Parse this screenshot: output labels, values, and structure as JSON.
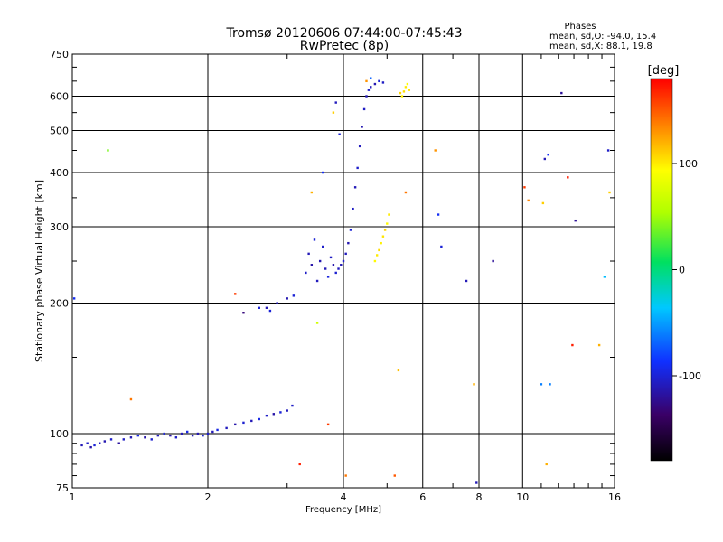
{
  "chart_data": {
    "type": "scatter",
    "title": "Tromsø 20120606 07:44:00-07:45:43",
    "subtitle": "RwPretec (8p)",
    "stats": {
      "header": "Phases",
      "line1": "mean, sd,O: -94.0, 15.4",
      "line2": "mean, sd,X:  88.1, 19.8"
    },
    "xlabel": "Frequency [MHz]",
    "ylabel": "Stationary phase Virtual Height [km]",
    "x_scale": "log",
    "y_scale": "log",
    "xlim": [
      1,
      16
    ],
    "ylim": [
      75,
      750
    ],
    "x_ticks": [
      1,
      2,
      4,
      6,
      8,
      10,
      16
    ],
    "y_ticks": [
      75,
      100,
      200,
      300,
      400,
      500,
      600,
      750
    ],
    "grid": true,
    "colorbar": {
      "label": "[deg]",
      "range": [
        -180,
        180
      ],
      "ticks": [
        100,
        0,
        -100
      ]
    },
    "series": [
      {
        "points": [
          [
            1.05,
            94,
            -110
          ],
          [
            1.08,
            95,
            -105
          ],
          [
            1.1,
            93,
            -115
          ],
          [
            1.12,
            94,
            -100
          ],
          [
            1.15,
            95,
            -108
          ],
          [
            1.18,
            96,
            -112
          ],
          [
            1.22,
            97,
            -104
          ],
          [
            1.27,
            95,
            -118
          ],
          [
            1.3,
            97,
            -106
          ],
          [
            1.35,
            98,
            -110
          ],
          [
            1.4,
            99,
            -95
          ],
          [
            1.45,
            98,
            -114
          ],
          [
            1.5,
            97,
            -102
          ],
          [
            1.55,
            99,
            -108
          ],
          [
            1.6,
            100,
            -98
          ],
          [
            1.65,
            99,
            -116
          ],
          [
            1.7,
            98,
            -105
          ],
          [
            1.75,
            100,
            -110
          ],
          [
            1.8,
            101,
            -95
          ],
          [
            1.85,
            99,
            -108
          ],
          [
            1.9,
            100,
            -112
          ],
          [
            1.95,
            99,
            -100
          ],
          [
            2.0,
            100,
            -105
          ],
          [
            2.05,
            101,
            -110
          ],
          [
            2.1,
            102,
            -96
          ],
          [
            2.2,
            103,
            -108
          ],
          [
            2.3,
            105,
            -114
          ],
          [
            2.4,
            106,
            -102
          ],
          [
            2.5,
            107,
            -110
          ],
          [
            2.6,
            108,
            -95
          ],
          [
            2.7,
            110,
            -105
          ],
          [
            2.8,
            111,
            -115
          ],
          [
            2.9,
            112,
            -100
          ],
          [
            3.0,
            113,
            -108
          ],
          [
            3.08,
            116,
            -105
          ],
          [
            2.7,
            195,
            -110
          ],
          [
            2.75,
            192,
            -100
          ],
          [
            2.85,
            200,
            -108
          ],
          [
            3.0,
            205,
            -112
          ],
          [
            3.1,
            208,
            -100
          ],
          [
            3.3,
            235,
            -105
          ],
          [
            3.35,
            260,
            -110
          ],
          [
            3.4,
            245,
            -115
          ],
          [
            3.45,
            280,
            -100
          ],
          [
            3.5,
            225,
            -108
          ],
          [
            3.55,
            250,
            -112
          ],
          [
            3.6,
            270,
            -104
          ],
          [
            3.65,
            240,
            -110
          ],
          [
            3.7,
            230,
            -98
          ],
          [
            3.75,
            255,
            -106
          ],
          [
            3.8,
            245,
            -114
          ],
          [
            3.85,
            235,
            -102
          ],
          [
            3.9,
            240,
            -108
          ],
          [
            3.95,
            245,
            -110
          ],
          [
            4.0,
            250,
            -104
          ],
          [
            4.05,
            260,
            -108
          ],
          [
            4.1,
            275,
            -112
          ],
          [
            4.15,
            295,
            -100
          ],
          [
            4.2,
            330,
            -106
          ],
          [
            4.25,
            370,
            -110
          ],
          [
            4.3,
            410,
            -104
          ],
          [
            4.35,
            460,
            -108
          ],
          [
            4.4,
            510,
            -112
          ],
          [
            4.45,
            560,
            -106
          ],
          [
            4.5,
            600,
            -110
          ],
          [
            4.55,
            620,
            -104
          ],
          [
            4.6,
            630,
            -108
          ],
          [
            4.7,
            640,
            -112
          ],
          [
            4.8,
            650,
            -100
          ],
          [
            4.9,
            645,
            -106
          ],
          [
            3.92,
            490,
            -100
          ],
          [
            3.85,
            580,
            -108
          ],
          [
            4.6,
            660,
            -70
          ],
          [
            4.7,
            250,
            95
          ],
          [
            4.75,
            258,
            100
          ],
          [
            4.8,
            265,
            105
          ],
          [
            4.85,
            275,
            98
          ],
          [
            4.9,
            285,
            102
          ],
          [
            4.95,
            295,
            108
          ],
          [
            5.0,
            305,
            95
          ],
          [
            5.05,
            320,
            100
          ],
          [
            5.4,
            600,
            98
          ],
          [
            5.45,
            615,
            105
          ],
          [
            5.5,
            630,
            100
          ],
          [
            5.55,
            640,
            95
          ],
          [
            5.6,
            620,
            102
          ],
          [
            5.35,
            610,
            108
          ],
          [
            1.2,
            450,
            40
          ],
          [
            1.35,
            120,
            140
          ],
          [
            2.3,
            210,
            160
          ],
          [
            2.4,
            190,
            -130
          ],
          [
            2.6,
            195,
            -100
          ],
          [
            3.2,
            85,
            170
          ],
          [
            3.4,
            360,
            120
          ],
          [
            3.5,
            180,
            70
          ],
          [
            3.6,
            400,
            -90
          ],
          [
            3.7,
            105,
            160
          ],
          [
            3.8,
            550,
            110
          ],
          [
            4.5,
            650,
            130
          ],
          [
            5.2,
            80,
            150
          ],
          [
            5.3,
            140,
            115
          ],
          [
            5.5,
            360,
            140
          ],
          [
            6.4,
            450,
            130
          ],
          [
            6.5,
            320,
            -90
          ],
          [
            6.6,
            270,
            -100
          ],
          [
            7.5,
            225,
            -110
          ],
          [
            7.8,
            130,
            120
          ],
          [
            7.9,
            77,
            -110
          ],
          [
            8.6,
            250,
            -120
          ],
          [
            10.1,
            370,
            160
          ],
          [
            10.3,
            345,
            135
          ],
          [
            11.1,
            340,
            110
          ],
          [
            11.2,
            430,
            -110
          ],
          [
            11.4,
            440,
            -90
          ],
          [
            11.5,
            130,
            -60
          ],
          [
            12.2,
            610,
            -120
          ],
          [
            12.6,
            390,
            170
          ],
          [
            12.9,
            160,
            170
          ],
          [
            13.1,
            310,
            -120
          ],
          [
            14.8,
            160,
            120
          ],
          [
            15.2,
            230,
            -40
          ],
          [
            15.5,
            450,
            -105
          ],
          [
            15.6,
            360,
            110
          ],
          [
            11.3,
            85,
            120
          ],
          [
            11.0,
            130,
            -60
          ],
          [
            1.01,
            205,
            -90
          ],
          [
            4.05,
            80,
            140
          ]
        ]
      }
    ]
  }
}
